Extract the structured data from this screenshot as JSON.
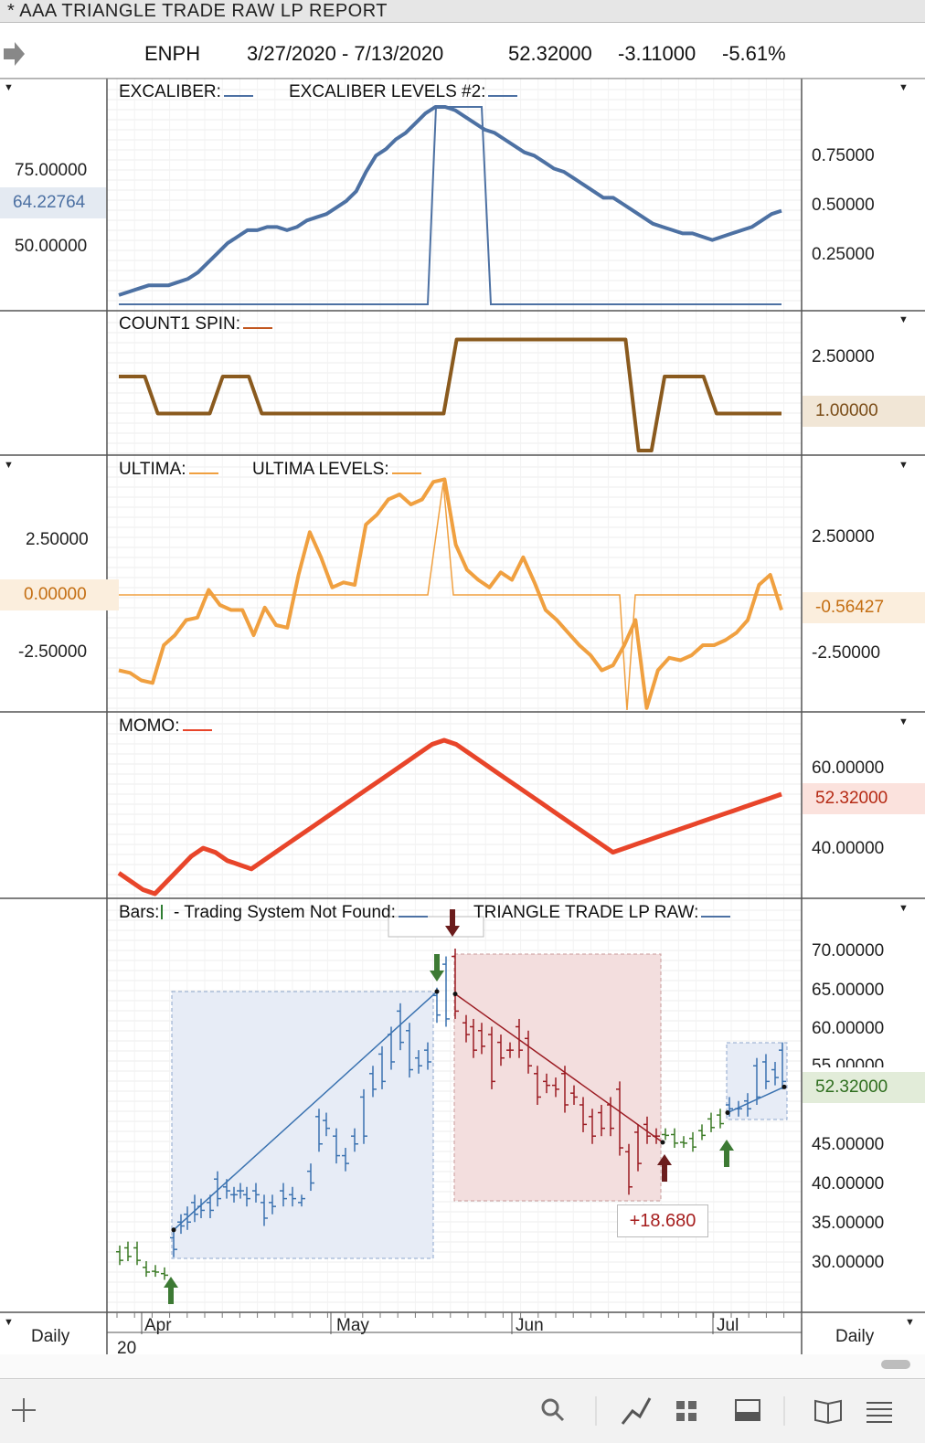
{
  "window": {
    "title": "* AAA  TRIANGLE TRADE RAW LP REPORT"
  },
  "symbol_bar": {
    "symbol": "ENPH",
    "date_range": "3/27/2020 - 7/13/2020",
    "last": "52.32000",
    "change": "-3.11000",
    "change_pct": "-5.61%"
  },
  "panels": {
    "excaliber": {
      "label1": "EXCALIBER:",
      "label2": "EXCALIBER LEVELS #2:",
      "left_ticks": [
        "75.00000",
        "50.00000"
      ],
      "left_tag": "64.22764",
      "right_ticks": [
        "0.75000",
        "0.50000",
        "0.25000"
      ],
      "color": "#4d71a3"
    },
    "count1": {
      "label1": "COUNT1 SPIN:",
      "right_ticks": [
        "2.50000"
      ],
      "right_tag": "1.00000",
      "color": "#8a5a1e"
    },
    "ultima": {
      "label1": "ULTIMA:",
      "label2": "ULTIMA LEVELS:",
      "left_ticks": [
        "2.50000",
        "-2.50000"
      ],
      "left_tag": "0.00000",
      "right_ticks": [
        "2.50000",
        "-2.50000"
      ],
      "right_tag": "-0.56427",
      "color": "#f0a040"
    },
    "momo": {
      "label1": "MOMO:",
      "right_ticks": [
        "60.00000",
        "40.00000"
      ],
      "right_tag": "52.32000",
      "color": "#e8452a"
    },
    "bars": {
      "label1": "Bars:",
      "label2": "- Trading System Not Found:",
      "label3": "TRIANGLE TRADE LP RAW:",
      "right_ticks": [
        "70.00000",
        "65.00000",
        "60.00000",
        "55.00000",
        "45.00000",
        "40.00000",
        "35.00000",
        "30.00000"
      ],
      "right_tag": "52.32000",
      "profit_label": "+18.680"
    }
  },
  "time_axis": {
    "months": [
      "Apr",
      "May",
      "Jun",
      "Jul"
    ],
    "year": "20",
    "left_period": "Daily",
    "right_period": "Daily"
  },
  "toolbar": {
    "icons": [
      "add-icon",
      "search-icon",
      "chart-line-icon",
      "grid-icon",
      "panel-icon",
      "book-icon",
      "list-icon"
    ]
  },
  "chart_data": [
    {
      "type": "line",
      "title": "EXCALIBER",
      "series": [
        {
          "name": "EXCALIBER",
          "values": [
            42,
            43,
            44,
            45,
            45,
            45,
            46,
            47,
            49,
            52,
            55,
            58,
            60,
            62,
            62,
            63,
            63,
            62,
            63,
            65,
            66,
            67,
            69,
            71,
            74,
            80,
            85,
            87,
            90,
            92,
            95,
            98,
            100,
            100,
            99,
            97,
            95,
            93,
            92,
            90,
            88,
            86,
            85,
            83,
            81,
            80,
            78,
            76,
            74,
            72,
            72,
            70,
            68,
            66,
            64,
            63,
            62,
            61,
            61,
            60,
            59,
            60,
            61,
            62,
            63,
            65,
            67,
            68
          ]
        }
      ]
    },
    {
      "type": "line",
      "title": "COUNT1 SPIN",
      "series": [
        {
          "name": "COUNT1 SPIN",
          "values": [
            2,
            2,
            2,
            1,
            1,
            1,
            1,
            1,
            2,
            2,
            2,
            1,
            1,
            1,
            1,
            1,
            1,
            1,
            1,
            1,
            1,
            1,
            1,
            1,
            1,
            1,
            3,
            3,
            3,
            3,
            3,
            3,
            3,
            3,
            3,
            3,
            3,
            3,
            3,
            3,
            0,
            0,
            2,
            2,
            2,
            2,
            1,
            1,
            1,
            1,
            1,
            1
          ]
        }
      ]
    },
    {
      "type": "line",
      "title": "ULTIMA",
      "series": [
        {
          "name": "ULTIMA",
          "values": [
            -3.0,
            -3.1,
            -3.4,
            -3.5,
            -2.0,
            -1.6,
            -1.0,
            -0.9,
            0.2,
            -0.4,
            -0.6,
            -0.6,
            -1.6,
            -0.5,
            -1.2,
            -1.3,
            0.8,
            2.5,
            1.5,
            0.3,
            0.5,
            0.4,
            2.8,
            3.2,
            3.8,
            4.0,
            3.6,
            3.8,
            4.5,
            4.6,
            2.0,
            1.0,
            0.6,
            0.3,
            0.9,
            0.6,
            1.5,
            0.5,
            -0.6,
            -1.0,
            -1.5,
            -2.0,
            -2.4,
            -3.0,
            -2.8,
            -2.0,
            -1.0,
            -4.5,
            -3.0,
            -2.5,
            -2.6,
            -2.4,
            -2.0,
            -2.0,
            -1.8,
            -1.5,
            -1.0,
            0.4,
            0.8,
            -0.6
          ]
        }
      ]
    },
    {
      "type": "line",
      "title": "MOMO",
      "series": [
        {
          "name": "MOMO",
          "values": [
            33,
            31,
            29,
            28,
            31,
            34,
            37,
            39,
            38,
            36,
            35,
            34,
            36,
            38,
            40,
            42,
            44,
            46,
            48,
            50,
            52,
            54,
            56,
            58,
            60,
            62,
            64,
            65,
            64,
            62,
            60,
            58,
            56,
            54,
            52,
            50,
            48,
            46,
            44,
            42,
            40,
            38,
            39,
            40,
            41,
            42,
            43,
            44,
            45,
            46,
            47,
            48,
            49,
            50,
            51,
            52
          ]
        }
      ]
    },
    {
      "type": "bar",
      "title": "Bars",
      "categories": [
        "Apr",
        "May",
        "Jun",
        "Jul"
      ],
      "ylim": [
        27,
        73
      ]
    }
  ]
}
